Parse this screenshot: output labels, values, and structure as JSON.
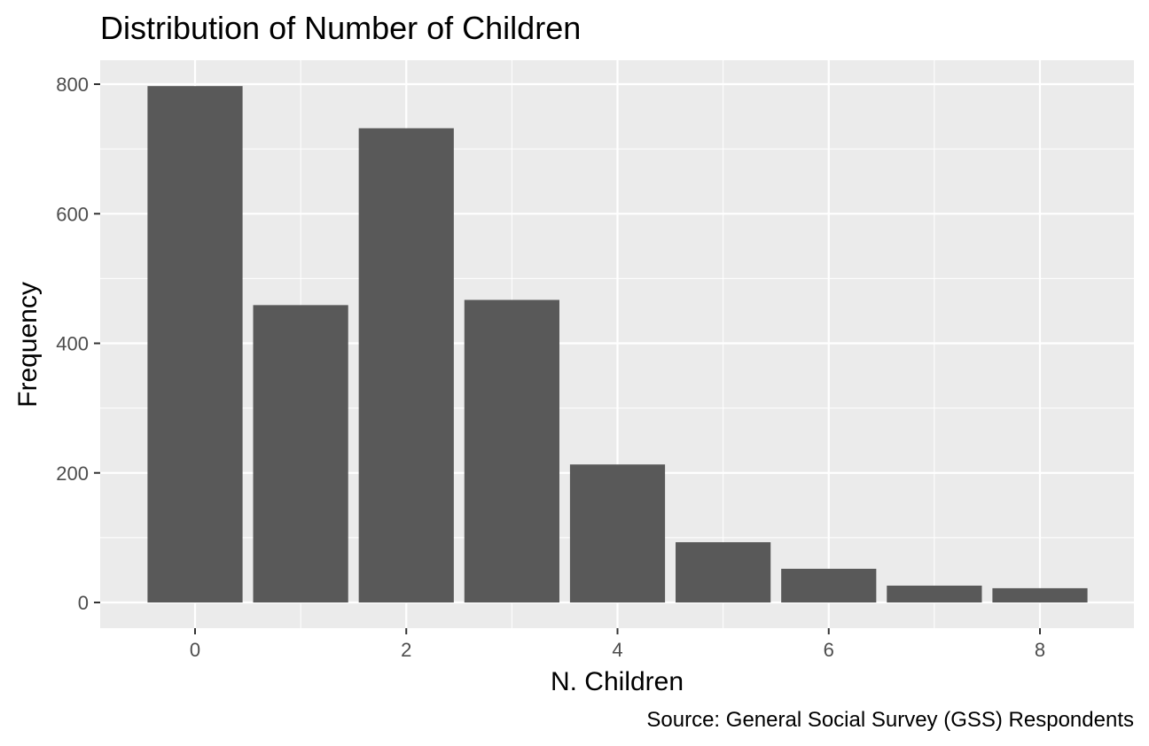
{
  "chart_data": {
    "type": "bar",
    "title": "Distribution of Number of Children",
    "xlabel": "N. Children",
    "ylabel": "Frequency",
    "caption": "Source: General Social Survey (GSS) Respondents",
    "x": [
      0,
      1,
      2,
      3,
      4,
      5,
      6,
      7,
      8
    ],
    "values": [
      797,
      459,
      732,
      467,
      213,
      93,
      52,
      26,
      22
    ],
    "xlim": [
      -0.5,
      8.5
    ],
    "ylim": [
      0,
      800
    ],
    "x_ticks": [
      "0",
      "2",
      "4",
      "6",
      "8"
    ],
    "y_ticks": [
      "0",
      "200",
      "400",
      "600",
      "800"
    ],
    "grid": true,
    "bar_color": "#595959",
    "panel_color": "#EBEBEB"
  }
}
